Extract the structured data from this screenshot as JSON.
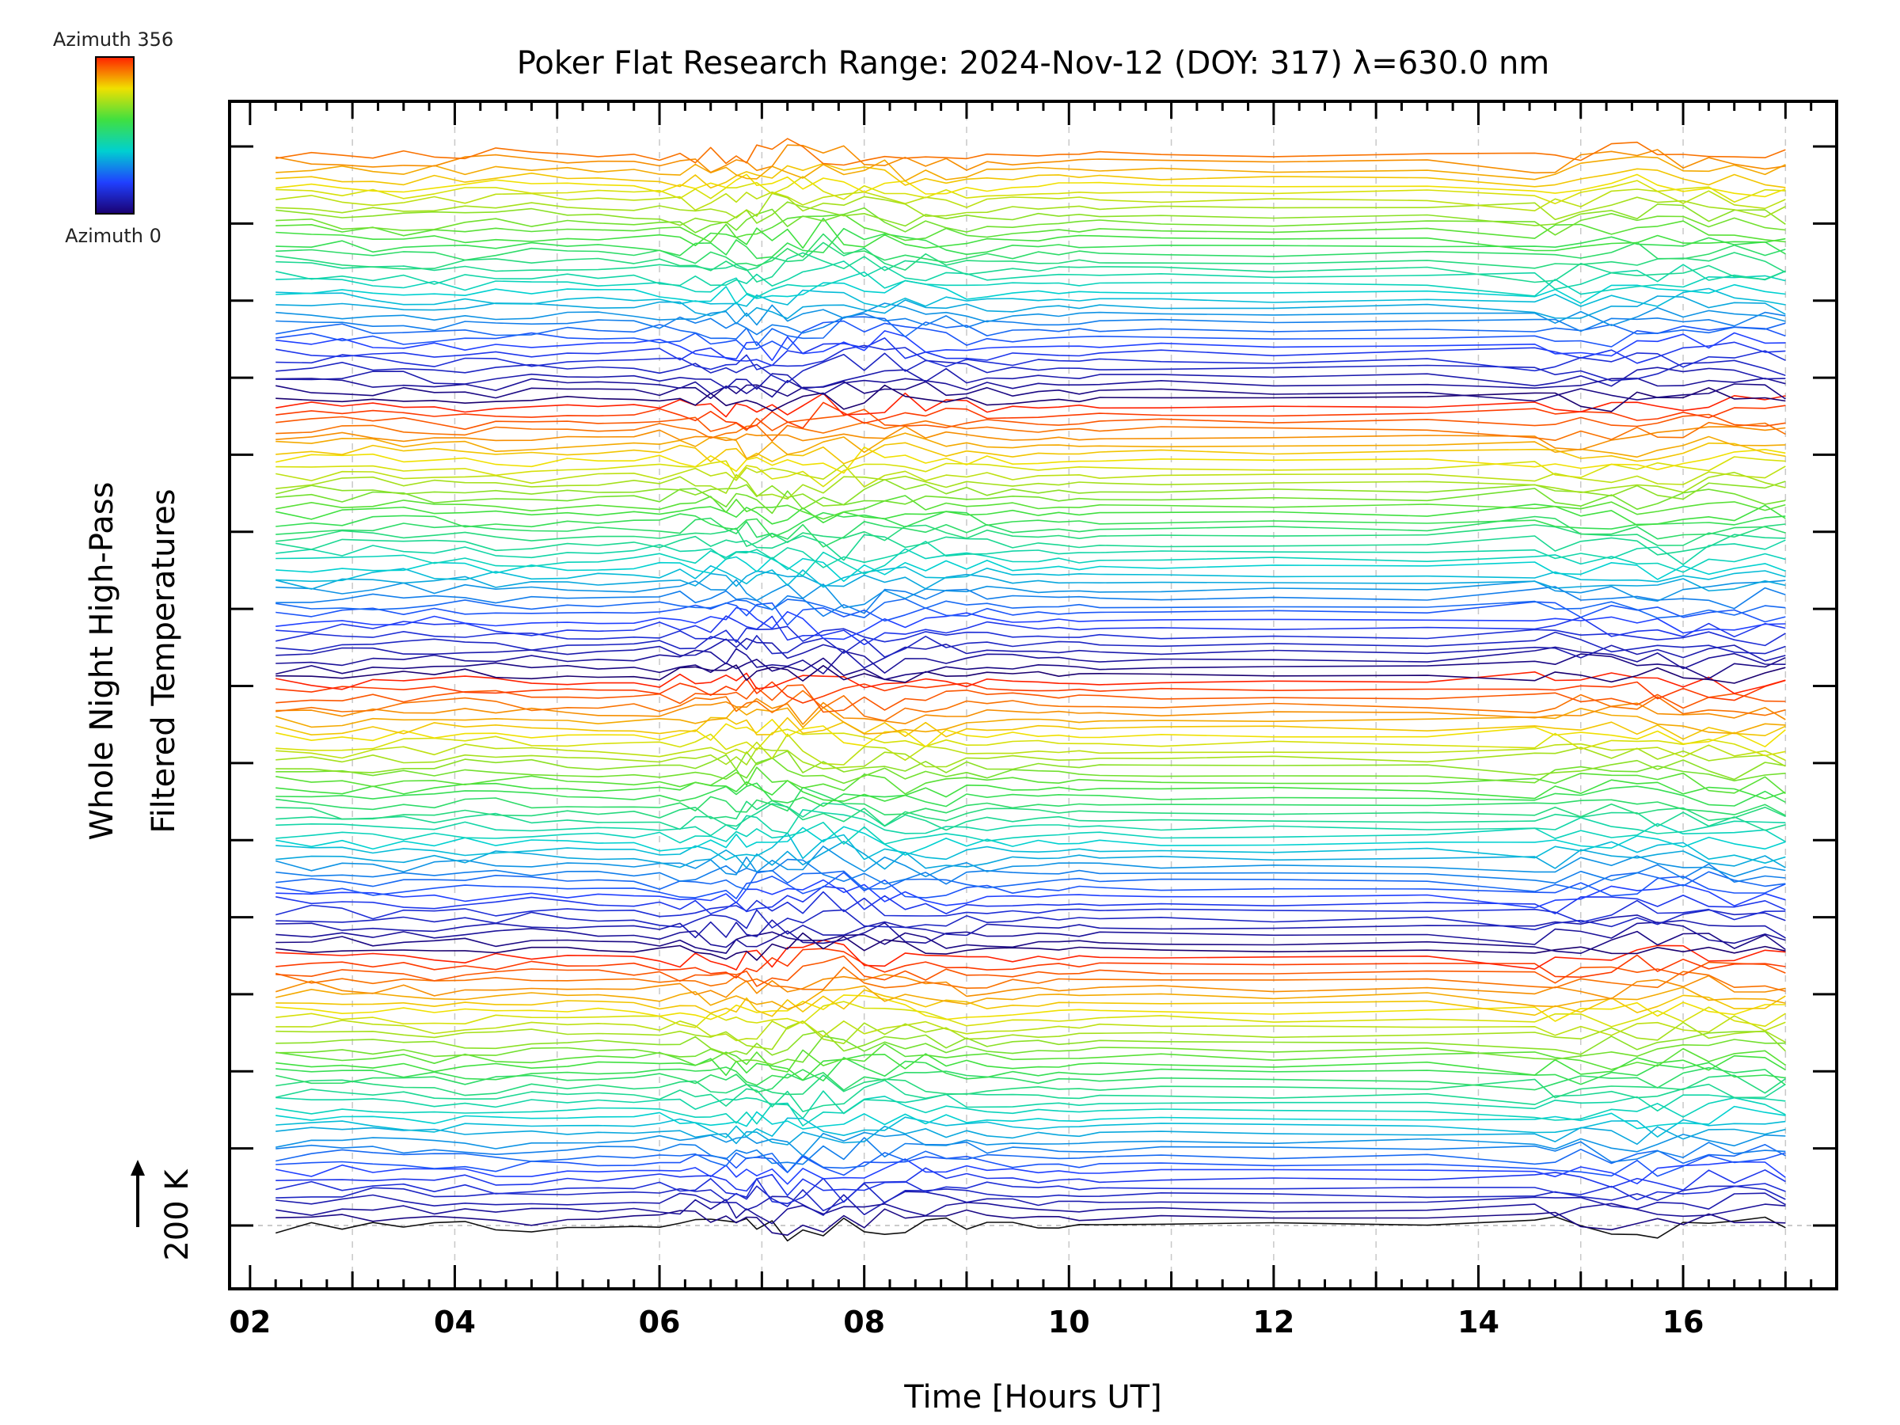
{
  "chart_data": {
    "type": "line",
    "title": "Poker Flat Research Range: 2024-Nov-12 (DOY: 317) λ=630.0 nm",
    "xlabel": "Time [Hours UT]",
    "ylabel_line1": "Whole Night High-Pass",
    "ylabel_line2": "Filtered Temperatures",
    "scale_label": "200 K",
    "xlim": [
      1.8,
      17.5
    ],
    "xticks": [
      2,
      4,
      6,
      8,
      10,
      12,
      14,
      16
    ],
    "xtick_labels": [
      "02",
      "04",
      "06",
      "08",
      "10",
      "12",
      "14",
      "16"
    ],
    "grid": true,
    "colorbar": {
      "top_label": "Azimuth 356",
      "bottom_label": "Azimuth 0",
      "colormap": "rainbow",
      "min": 0,
      "max": 356
    },
    "series_count": 141,
    "azimuth_step_deg": 2.5,
    "offset_per_series_k": 200,
    "x": [
      2.25,
      2.6,
      2.9,
      3.2,
      3.5,
      3.8,
      4.1,
      4.4,
      4.75,
      5.1,
      5.4,
      5.75,
      6.0,
      6.2,
      6.35,
      6.5,
      6.65,
      6.75,
      6.85,
      6.95,
      7.1,
      7.25,
      7.4,
      7.6,
      7.8,
      8.0,
      8.2,
      8.4,
      8.6,
      8.8,
      9.0,
      9.2,
      9.45,
      9.7,
      9.9,
      10.1,
      10.3,
      10.9,
      12.0,
      13.5,
      14.55,
      14.75,
      15.0,
      15.3,
      15.55,
      15.75,
      16.0,
      16.25,
      16.5,
      16.8,
      17.0
    ],
    "night_activity_window_hours": [
      6.0,
      10.3
    ],
    "morning_activity_window_hours": [
      14.5,
      17.0
    ]
  }
}
